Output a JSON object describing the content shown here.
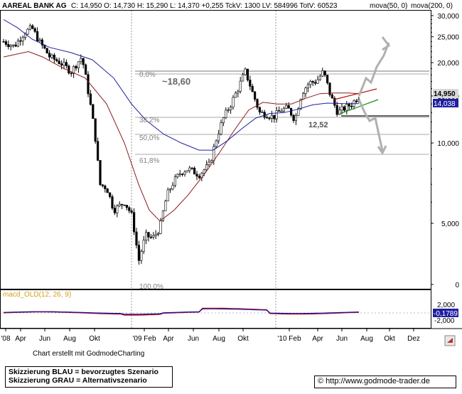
{
  "header": {
    "title": "AAREAL BANK AG",
    "quote": "C: 14,950  O: 14,730  H: 15,290  L: 14,370  +0,255  TckV: 1300  LV: 584996  TotV: 60523",
    "ma1_label": "mova(50, 0)",
    "ma2_label": "mova(200, 0)"
  },
  "colors": {
    "ma50": "#8b1a1a",
    "ma200": "#1f1fa0",
    "candle": "#000000",
    "scenario_gray": "#b0b0b0",
    "trend_red": "#c01010",
    "trend_green": "#1a8a1a",
    "macd_red": "#d01010",
    "macd_blue": "#1010a0",
    "price_tag_bg": "#dcdcdc",
    "price_tag_blue_bg": "#1f1fa0"
  },
  "chart_data": {
    "type": "candlestick",
    "y_scale": "log",
    "ylim": [
      2.5,
      31
    ],
    "yticks": [
      "30,000",
      "25,000",
      "20,000",
      "15,000",
      "10,000",
      "5,000",
      "0"
    ],
    "xticks": [
      "'08",
      "Apr",
      "Jun",
      "Aug",
      "Okt",
      "'09 Feb",
      "Apr",
      "Jun",
      "Aug",
      "Okt",
      "'10 Feb",
      "Apr",
      "Jun",
      "Aug",
      "Okt",
      "Dez"
    ],
    "last_price": "14,950",
    "ma_value": "14,038",
    "annotations": {
      "fib_0": "0,0%",
      "fib_382": "38,2%",
      "fib_50": "50,0%",
      "fib_618": "61,8%",
      "fib_100": "100,0%",
      "high_label": "~18,60",
      "low_label": "12,52"
    },
    "macd": {
      "label": "macd_OLD(12, 26, 9)",
      "yticks": [
        "2,000",
        "-2,000"
      ],
      "value": "-0,1789"
    }
  },
  "footer": {
    "credit": "Chart erstellt mit GodmodeCharting",
    "legend_blue": "Skizzierung BLAU = bevorzugtes Szenario",
    "legend_gray": "Skizzierung GRAU = Alternativszenario",
    "website": "http://www.godmode-trader.de",
    "copyright_symbol": "©"
  }
}
